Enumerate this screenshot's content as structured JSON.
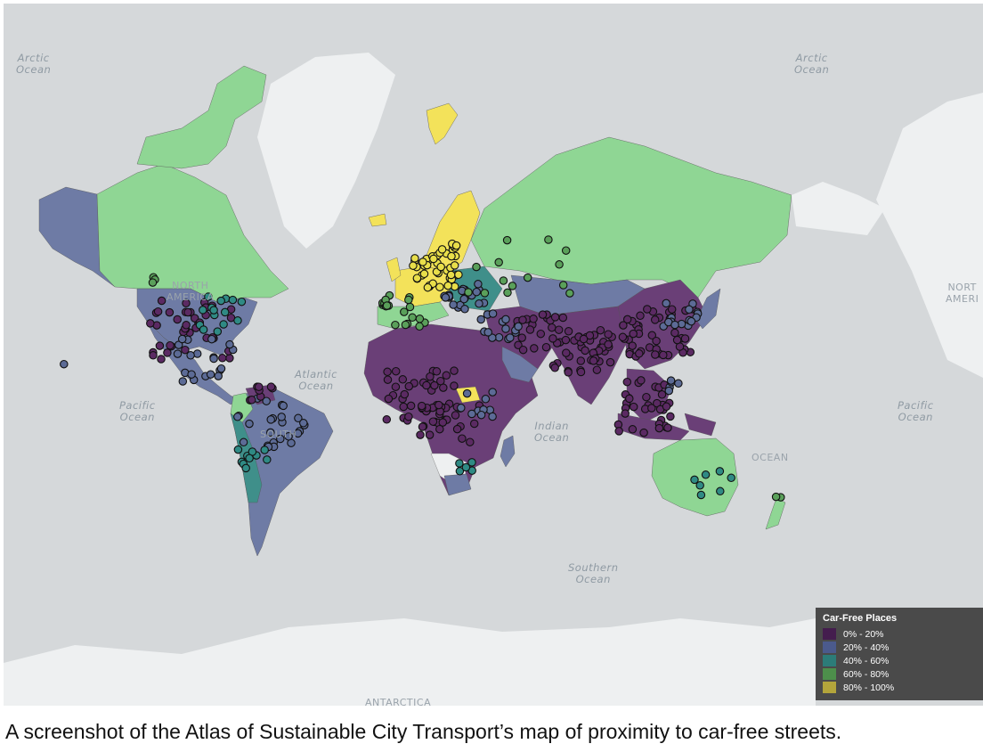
{
  "map": {
    "ocean_labels": [
      {
        "id": "arctic-ocean-west",
        "text": "Arctic\nOcean"
      },
      {
        "id": "arctic-ocean-east",
        "text": "Arctic\nOcean"
      },
      {
        "id": "atlantic-ocean",
        "text": "Atlantic\nOcean"
      },
      {
        "id": "pacific-ocean-west",
        "text": "Pacific\nOcean"
      },
      {
        "id": "pacific-ocean-east",
        "text": "Pacific\nOcean"
      },
      {
        "id": "indian-ocean",
        "text": "Indian\nOcean"
      },
      {
        "id": "southern-ocean",
        "text": "Southern\nOcean"
      }
    ],
    "continent_labels": [
      {
        "id": "north-america",
        "text": "NORTH\nAMERICA"
      },
      {
        "id": "north-america-repeat",
        "text": "NORT\nAMERI"
      },
      {
        "id": "south-america",
        "text": "SOUTH"
      },
      {
        "id": "oceania",
        "text": "OCEAN"
      },
      {
        "id": "antarctica",
        "text": "ANTARCTICA"
      }
    ],
    "category_colors": {
      "c1": "#5b2a63",
      "c2": "#5c6b96",
      "c3": "#2f8a84",
      "c4": "#5aa05a",
      "c5": "#e8de4a",
      "green_fill": "#8fd694",
      "purple_fill": "#6a3f77",
      "slate_fill": "#6e7ba5",
      "teal_fill": "#3f8f8a",
      "yellow_fill": "#f3e25a",
      "land_nodata": "#eef0f1"
    }
  },
  "legend": {
    "title": "Car-Free Places",
    "items": [
      {
        "label": "0% - 20%",
        "color": "#441d4e"
      },
      {
        "label": "20% - 40%",
        "color": "#4b5a8c"
      },
      {
        "label": "40% - 60%",
        "color": "#2c7c78"
      },
      {
        "label": "60% - 80%",
        "color": "#4d8f4b"
      },
      {
        "label": "80% - 100%",
        "color": "#b3a53b"
      }
    ]
  },
  "caption": "A screenshot of the Atlas of Sustainable City Transport’s map of proximity to car-free streets."
}
